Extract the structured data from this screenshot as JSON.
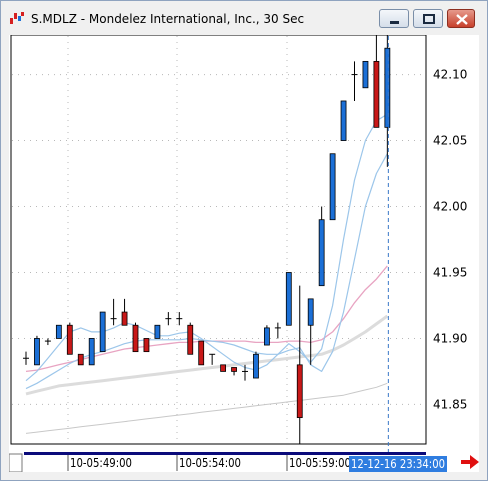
{
  "window": {
    "title": "S.MDLZ - Mondelez International, Inc., 30 Sec",
    "app_icon": "chart-app-icon",
    "controls": [
      "minimize-icon",
      "restore-icon",
      "close-icon"
    ]
  },
  "chart_data": {
    "type": "candlestick",
    "y_ticks": [
      "42.10",
      "42.05",
      "42.00",
      "41.95",
      "41.90",
      "41.85"
    ],
    "y_tick_values": [
      42.1,
      42.05,
      42.0,
      41.95,
      41.9,
      41.85
    ],
    "ylim": [
      41.82,
      42.13
    ],
    "x_labels": [
      "10-05:49:00",
      "10-05:54:00",
      "10-05:59:00"
    ],
    "crosshair_label": "12-12-16 23:34:00",
    "grid": true,
    "colors": {
      "up": "#1b6fd6",
      "down": "#c81818",
      "line_light_blue": "#9cc6ea",
      "line_pink": "#e8a4c2",
      "line_gray": "#cfcfcf",
      "crosshair": "#3a78c8"
    },
    "candles": [
      {
        "o": 41.885,
        "h": 41.89,
        "l": 41.88,
        "c": 41.885
      },
      {
        "o": 41.88,
        "h": 41.902,
        "l": 41.88,
        "c": 41.9
      },
      {
        "o": 41.898,
        "h": 41.9,
        "l": 41.895,
        "c": 41.898
      },
      {
        "o": 41.9,
        "h": 41.91,
        "l": 41.9,
        "c": 41.91
      },
      {
        "o": 41.91,
        "h": 41.912,
        "l": 41.888,
        "c": 41.888
      },
      {
        "o": 41.888,
        "h": 41.888,
        "l": 41.88,
        "c": 41.88
      },
      {
        "o": 41.88,
        "h": 41.9,
        "l": 41.88,
        "c": 41.9
      },
      {
        "o": 41.89,
        "h": 41.92,
        "l": 41.89,
        "c": 41.92
      },
      {
        "o": 41.915,
        "h": 41.93,
        "l": 41.91,
        "c": 41.915
      },
      {
        "o": 41.92,
        "h": 41.93,
        "l": 41.91,
        "c": 41.91
      },
      {
        "o": 41.91,
        "h": 41.912,
        "l": 41.89,
        "c": 41.89
      },
      {
        "o": 41.9,
        "h": 41.9,
        "l": 41.89,
        "c": 41.89
      },
      {
        "o": 41.9,
        "h": 41.91,
        "l": 41.9,
        "c": 41.91
      },
      {
        "o": 41.915,
        "h": 41.92,
        "l": 41.91,
        "c": 41.915
      },
      {
        "o": 41.915,
        "h": 41.92,
        "l": 41.91,
        "c": 41.915
      },
      {
        "o": 41.91,
        "h": 41.912,
        "l": 41.888,
        "c": 41.888
      },
      {
        "o": 41.898,
        "h": 41.898,
        "l": 41.88,
        "c": 41.88
      },
      {
        "o": 41.888,
        "h": 41.888,
        "l": 41.88,
        "c": 41.888
      },
      {
        "o": 41.88,
        "h": 41.88,
        "l": 41.875,
        "c": 41.875
      },
      {
        "o": 41.878,
        "h": 41.878,
        "l": 41.872,
        "c": 41.875
      },
      {
        "o": 41.875,
        "h": 41.88,
        "l": 41.868,
        "c": 41.875
      },
      {
        "o": 41.87,
        "h": 41.89,
        "l": 41.87,
        "c": 41.888
      },
      {
        "o": 41.895,
        "h": 41.91,
        "l": 41.895,
        "c": 41.908
      },
      {
        "o": 41.908,
        "h": 41.912,
        "l": 41.9,
        "c": 41.908
      },
      {
        "o": 41.91,
        "h": 41.95,
        "l": 41.91,
        "c": 41.95
      },
      {
        "o": 41.88,
        "h": 41.94,
        "l": 41.82,
        "c": 41.84
      },
      {
        "o": 41.91,
        "h": 41.93,
        "l": 41.88,
        "c": 41.93
      },
      {
        "o": 41.94,
        "h": 42.0,
        "l": 41.94,
        "c": 41.99
      },
      {
        "o": 41.99,
        "h": 42.04,
        "l": 41.99,
        "c": 42.04
      },
      {
        "o": 42.05,
        "h": 42.08,
        "l": 42.05,
        "c": 42.08
      },
      {
        "o": 42.1,
        "h": 42.11,
        "l": 42.08,
        "c": 42.1
      },
      {
        "o": 42.09,
        "h": 42.11,
        "l": 42.09,
        "c": 42.11
      },
      {
        "o": 42.11,
        "h": 42.135,
        "l": 42.06,
        "c": 42.06
      },
      {
        "o": 42.06,
        "h": 42.13,
        "l": 42.03,
        "c": 42.12
      }
    ],
    "ma_light_blue_fast": [
      41.868,
      41.875,
      41.885,
      41.895,
      41.905,
      41.908,
      41.905,
      41.905,
      41.908,
      41.912,
      41.91,
      41.906,
      41.902,
      41.902,
      41.904,
      41.905,
      41.9,
      41.894,
      41.888,
      41.882,
      41.878,
      41.876,
      41.88,
      41.888,
      41.896,
      41.89,
      41.882,
      41.892,
      41.925,
      41.975,
      42.02,
      42.05,
      42.065,
      42.07
    ],
    "ma_light_blue_slow": [
      41.862,
      41.866,
      41.871,
      41.876,
      41.881,
      41.885,
      41.888,
      41.89,
      41.893,
      41.896,
      41.898,
      41.899,
      41.899,
      41.899,
      41.899,
      41.9,
      41.899,
      41.898,
      41.897,
      41.895,
      41.892,
      41.889,
      41.888,
      41.888,
      41.891,
      41.893,
      41.88,
      41.875,
      41.89,
      41.92,
      41.96,
      42.0,
      42.025,
      42.04
    ],
    "ma_pink": [
      41.875,
      41.876,
      41.878,
      41.88,
      41.882,
      41.884,
      41.886,
      41.888,
      41.89,
      41.892,
      41.893,
      41.894,
      41.895,
      41.896,
      41.897,
      41.897,
      41.898,
      41.898,
      41.898,
      41.898,
      41.898,
      41.897,
      41.897,
      41.897,
      41.898,
      41.898,
      41.897,
      41.899,
      41.905,
      41.915,
      41.927,
      41.937,
      41.945,
      41.955
    ],
    "ma_gray_thick": [
      41.858,
      41.86,
      41.862,
      41.864,
      41.865,
      41.866,
      41.867,
      41.868,
      41.869,
      41.87,
      41.871,
      41.872,
      41.873,
      41.874,
      41.875,
      41.876,
      41.877,
      41.878,
      41.879,
      41.88,
      41.881,
      41.882,
      41.883,
      41.884,
      41.885,
      41.886,
      41.887,
      41.888,
      41.891,
      41.895,
      41.9,
      41.905,
      41.911,
      41.917
    ],
    "ma_gray_thin": [
      41.828,
      41.829,
      41.83,
      41.831,
      41.832,
      41.833,
      41.834,
      41.835,
      41.836,
      41.837,
      41.838,
      41.839,
      41.84,
      41.841,
      41.842,
      41.843,
      41.844,
      41.845,
      41.846,
      41.847,
      41.848,
      41.849,
      41.85,
      41.851,
      41.852,
      41.853,
      41.854,
      41.855,
      41.856,
      41.857,
      41.859,
      41.861,
      41.863,
      41.866
    ]
  }
}
